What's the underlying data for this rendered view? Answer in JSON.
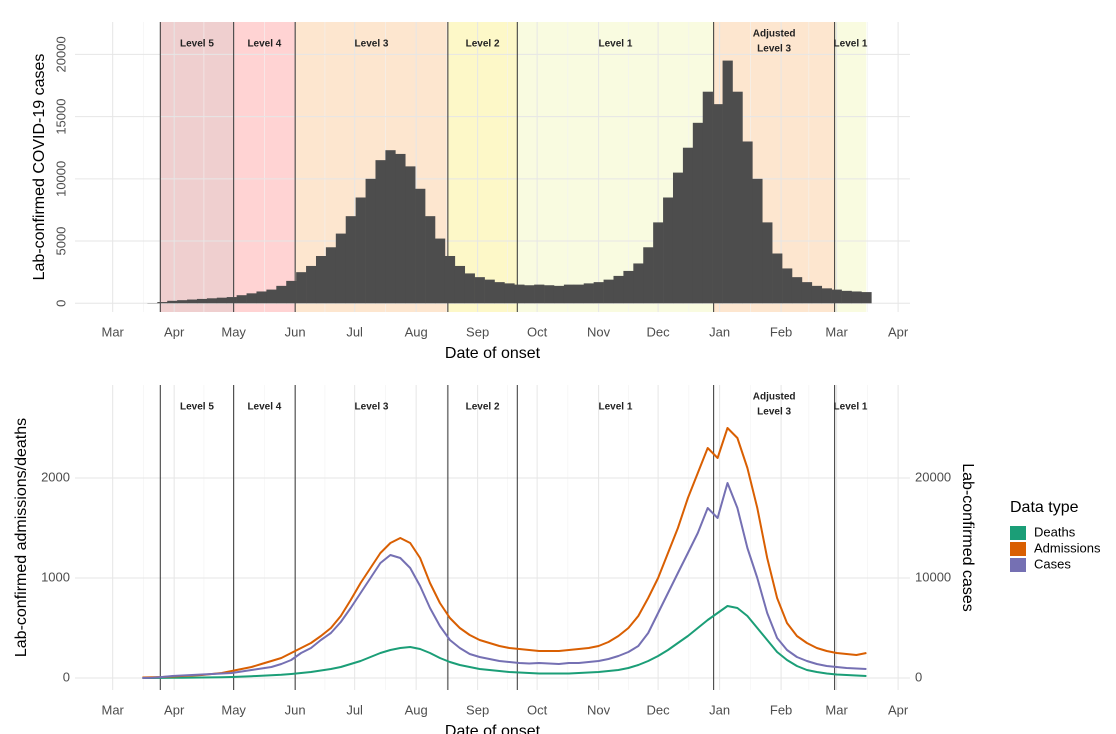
{
  "chart_data": [
    {
      "type": "bar",
      "y_label": "Lab-confirmed COVID-19 cases",
      "x_label": "Date of onset",
      "x": [
        15,
        20,
        25,
        30,
        35,
        40,
        45,
        50,
        55,
        60,
        65,
        70,
        75,
        80,
        85,
        90,
        95,
        100,
        105,
        110,
        115,
        120,
        125,
        130,
        135,
        140,
        145,
        150,
        155,
        160,
        165,
        170,
        175,
        180,
        185,
        190,
        195,
        200,
        205,
        210,
        215,
        220,
        225,
        230,
        235,
        240,
        245,
        250,
        255,
        260,
        265,
        270,
        275,
        280,
        285,
        290,
        295,
        300,
        305,
        310,
        315,
        320,
        325,
        330,
        335,
        340,
        345,
        350,
        355,
        360,
        365,
        370,
        375,
        380
      ],
      "values": [
        0,
        20,
        100,
        200,
        250,
        300,
        350,
        400,
        450,
        500,
        650,
        800,
        950,
        1100,
        1400,
        1800,
        2500,
        3000,
        3800,
        4500,
        5600,
        7000,
        8500,
        10000,
        11500,
        12300,
        12000,
        11000,
        9200,
        7000,
        5200,
        3800,
        3000,
        2400,
        2100,
        1900,
        1700,
        1600,
        1500,
        1450,
        1500,
        1450,
        1400,
        1500,
        1500,
        1600,
        1700,
        1900,
        2200,
        2600,
        3200,
        4500,
        6500,
        8500,
        10500,
        12500,
        14500,
        17000,
        16000,
        19500,
        17000,
        13000,
        10000,
        6500,
        4000,
        2800,
        2100,
        1700,
        1400,
        1200,
        1100,
        1000,
        950,
        900
      ],
      "color": "#4d4d4d",
      "xlim": [
        -19,
        402
      ],
      "ylim": [
        -700,
        22600
      ],
      "xticks": [
        {
          "value": 0,
          "label": "Mar"
        },
        {
          "value": 31,
          "label": "Apr"
        },
        {
          "value": 61,
          "label": "May"
        },
        {
          "value": 92,
          "label": "Jun"
        },
        {
          "value": 122,
          "label": "Jul"
        },
        {
          "value": 153,
          "label": "Aug"
        },
        {
          "value": 184,
          "label": "Sep"
        },
        {
          "value": 214,
          "label": "Oct"
        },
        {
          "value": 245,
          "label": "Nov"
        },
        {
          "value": 275,
          "label": "Dec"
        },
        {
          "value": 306,
          "label": "Jan"
        },
        {
          "value": 337,
          "label": "Feb"
        },
        {
          "value": 365,
          "label": "Mar"
        },
        {
          "value": 396,
          "label": "Apr"
        }
      ],
      "yticks": [
        0,
        5000,
        10000,
        15000,
        20000
      ],
      "grid": true,
      "bands": [
        {
          "label": [
            "Level 5"
          ],
          "start": 24,
          "end": 61,
          "color": "#efcfcf"
        },
        {
          "label": [
            "Level 4"
          ],
          "start": 61,
          "end": 92,
          "color": "#ffd3d3"
        },
        {
          "label": [
            "Level 3"
          ],
          "start": 92,
          "end": 169,
          "color": "#fde6cf"
        },
        {
          "label": [
            "Level 2"
          ],
          "start": 169,
          "end": 204,
          "color": "#fdf8c8"
        },
        {
          "label": [
            "Level 1"
          ],
          "start": 204,
          "end": 303,
          "color": "#f9fbe0"
        },
        {
          "label": [
            "Adjusted",
            "Level 3"
          ],
          "start": 303,
          "end": 364,
          "color": "#fde6cf"
        },
        {
          "label": [
            "Level 1"
          ],
          "start": 364,
          "end": 380,
          "color": "#f9fbe0"
        }
      ]
    },
    {
      "type": "line",
      "y_label": "Lab-confirmed admissions/deaths",
      "y2_label": "Lab-confirmed cases",
      "x_label": "Date of onset",
      "x": [
        15,
        20,
        25,
        30,
        35,
        40,
        45,
        50,
        55,
        60,
        65,
        70,
        75,
        80,
        85,
        90,
        95,
        100,
        105,
        110,
        115,
        120,
        125,
        130,
        135,
        140,
        145,
        150,
        155,
        160,
        165,
        170,
        175,
        180,
        185,
        190,
        195,
        200,
        205,
        210,
        215,
        220,
        225,
        230,
        235,
        240,
        245,
        250,
        255,
        260,
        265,
        270,
        275,
        280,
        285,
        290,
        295,
        300,
        305,
        310,
        315,
        320,
        325,
        330,
        335,
        340,
        345,
        350,
        355,
        360,
        365,
        370,
        375,
        380
      ],
      "series": [
        {
          "name": "Deaths",
          "color": "#1b9e77",
          "values": [
            0,
            0,
            1,
            2,
            3,
            4,
            5,
            6,
            8,
            10,
            14,
            18,
            22,
            27,
            32,
            40,
            50,
            60,
            75,
            90,
            110,
            140,
            170,
            210,
            250,
            280,
            300,
            310,
            290,
            250,
            200,
            160,
            130,
            110,
            90,
            80,
            70,
            60,
            55,
            50,
            45,
            45,
            45,
            45,
            50,
            55,
            60,
            70,
            80,
            100,
            130,
            170,
            220,
            280,
            350,
            420,
            500,
            580,
            650,
            720,
            700,
            620,
            500,
            380,
            260,
            180,
            120,
            80,
            60,
            45,
            35,
            30,
            25,
            20
          ]
        },
        {
          "name": "Admissions",
          "color": "#d95f02",
          "values": [
            5,
            8,
            10,
            15,
            20,
            25,
            30,
            40,
            50,
            70,
            90,
            110,
            140,
            170,
            200,
            250,
            300,
            350,
            420,
            500,
            620,
            780,
            950,
            1100,
            1250,
            1350,
            1400,
            1350,
            1200,
            950,
            750,
            600,
            500,
            430,
            380,
            350,
            320,
            300,
            290,
            280,
            270,
            270,
            270,
            280,
            290,
            300,
            320,
            360,
            420,
            500,
            620,
            800,
            1000,
            1250,
            1500,
            1800,
            2050,
            2300,
            2200,
            2500,
            2400,
            2100,
            1700,
            1200,
            800,
            550,
            420,
            350,
            300,
            270,
            250,
            240,
            230,
            250
          ]
        },
        {
          "name": "Cases",
          "color": "#7570b3",
          "axis": "y2",
          "values": [
            0,
            20,
            100,
            200,
            250,
            300,
            350,
            400,
            450,
            500,
            650,
            800,
            950,
            1100,
            1400,
            1800,
            2500,
            3000,
            3800,
            4500,
            5600,
            7000,
            8500,
            10000,
            11500,
            12300,
            12000,
            11000,
            9200,
            7000,
            5200,
            3800,
            3000,
            2400,
            2100,
            1900,
            1700,
            1600,
            1500,
            1450,
            1500,
            1450,
            1400,
            1500,
            1500,
            1600,
            1700,
            1900,
            2200,
            2600,
            3200,
            4500,
            6500,
            8500,
            10500,
            12500,
            14500,
            17000,
            16000,
            19500,
            17000,
            13000,
            10000,
            6500,
            4000,
            2800,
            2100,
            1700,
            1400,
            1200,
            1100,
            1000,
            950,
            900
          ]
        }
      ],
      "xlim": [
        -19,
        402
      ],
      "ylim": [
        -120,
        2930
      ],
      "y2lim": [
        -1200,
        29300
      ],
      "xticks": [
        {
          "value": 0,
          "label": "Mar"
        },
        {
          "value": 31,
          "label": "Apr"
        },
        {
          "value": 61,
          "label": "May"
        },
        {
          "value": 92,
          "label": "Jun"
        },
        {
          "value": 122,
          "label": "Jul"
        },
        {
          "value": 153,
          "label": "Aug"
        },
        {
          "value": 184,
          "label": "Sep"
        },
        {
          "value": 214,
          "label": "Oct"
        },
        {
          "value": 245,
          "label": "Nov"
        },
        {
          "value": 275,
          "label": "Dec"
        },
        {
          "value": 306,
          "label": "Jan"
        },
        {
          "value": 337,
          "label": "Feb"
        },
        {
          "value": 365,
          "label": "Mar"
        },
        {
          "value": 396,
          "label": "Apr"
        }
      ],
      "yticks": [
        0,
        1000,
        2000
      ],
      "y2ticks": [
        0,
        10000,
        20000
      ],
      "grid": true,
      "legend_title": "Data type",
      "legend": "right",
      "bands": [
        {
          "label": [
            "Level 5"
          ],
          "start": 24,
          "end": 61
        },
        {
          "label": [
            "Level 4"
          ],
          "start": 61,
          "end": 92
        },
        {
          "label": [
            "Level 3"
          ],
          "start": 92,
          "end": 169
        },
        {
          "label": [
            "Level 2"
          ],
          "start": 169,
          "end": 204
        },
        {
          "label": [
            "Level 1"
          ],
          "start": 204,
          "end": 303
        },
        {
          "label": [
            "Adjusted",
            "Level 3"
          ],
          "start": 303,
          "end": 364
        },
        {
          "label": [
            "Level 1"
          ],
          "start": 364,
          "end": 380
        }
      ]
    }
  ]
}
